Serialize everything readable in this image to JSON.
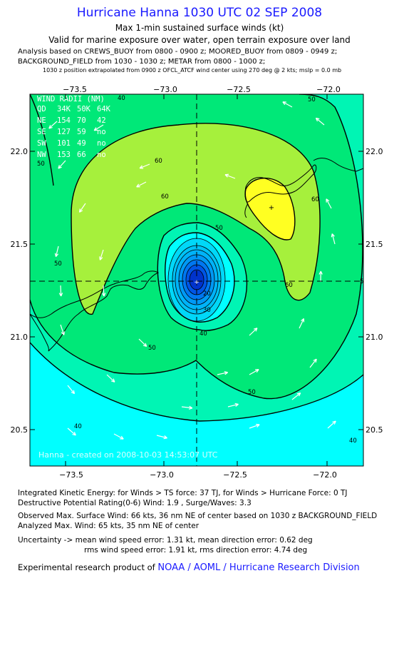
{
  "header": {
    "title": "Hurricane Hanna 1030 UTC 02 SEP 2008",
    "subtitle1": "Max 1-min sustained surface winds (kt)",
    "subtitle2": "Valid for marine exposure over water, open terrain exposure over land",
    "analysis1": "Analysis based on  CREWS_BUOY from 0800 - 0900 z;  MOORED_BUOY from 0809 - 0949 z;",
    "analysis2": "BACKGROUND_FIELD from 1030 - 1030 z;  METAR from 0800 - 1000 z;",
    "analysis3": "1030 z position extrapolated from 0900 z OFCL_ATCF wind center using 270 deg @ 2 kts; mslp = 0.0 mb"
  },
  "map": {
    "lon_ticks": [
      "−73.5",
      "−73.0",
      "−72.5",
      "−72.0"
    ],
    "lat_ticks": [
      "22.0",
      "21.5",
      "21.0",
      "20.5"
    ],
    "center": {
      "lon": -72.75,
      "lat": 21.3
    },
    "max_wind_marker": {
      "lon": -72.3,
      "lat": 21.7
    },
    "contour_labels": [
      "50",
      "60",
      "60",
      "60",
      "50",
      "50",
      "60",
      "50",
      "40",
      "50",
      "40",
      "40",
      "50",
      "50",
      "20",
      "30",
      "40"
    ],
    "wind_radii": {
      "title": "WIND RADII (NM)",
      "header": [
        "QD",
        "34K",
        "50K",
        "64K"
      ],
      "rows": [
        [
          "NE",
          "154",
          "70",
          "42"
        ],
        [
          "SE",
          "127",
          "59",
          "no"
        ],
        [
          "SW",
          "101",
          "49",
          "no"
        ],
        [
          "NW",
          "153",
          "66",
          "no"
        ]
      ]
    },
    "watermark": "Hanna - created on 2008-10-03 14:53:07 UTC",
    "colors": {
      "c20": "#00c3f5",
      "c30": "#00ffff",
      "c40": "#00f5b4",
      "c50": "#00e878",
      "c60": "#a6f03c",
      "c65": "#ffff22",
      "core": [
        "#0033cc",
        "#0055e6",
        "#0077f0",
        "#0099f5",
        "#00b3f8"
      ]
    }
  },
  "stats": {
    "ike": "Integrated Kinetic Energy:  for Winds > TS force: 37 TJ,  for Winds > Hurricane Force: 0 TJ",
    "dpr": "Destructive Potential Rating(0-6)   Wind: 1.9 , Surge/Waves: 3.3",
    "obs": "Observed Max. Surface Wind: 66 kts, 36 nm NE of center based on 1030 z BACKGROUND_FIELD",
    "anl": "Analyzed Max. Wind: 65 kts, 35 nm NE of center",
    "unc1": "Uncertainty -> mean wind speed error: 1.31 kt,   mean direction error: 0.62 deg",
    "unc2": "rms wind speed error: 1.91 kt,   rms direction error: 4.74 deg"
  },
  "credit": {
    "prefix": "Experimental research product of ",
    "org": "NOAA / AOML / Hurricane Research Division"
  }
}
